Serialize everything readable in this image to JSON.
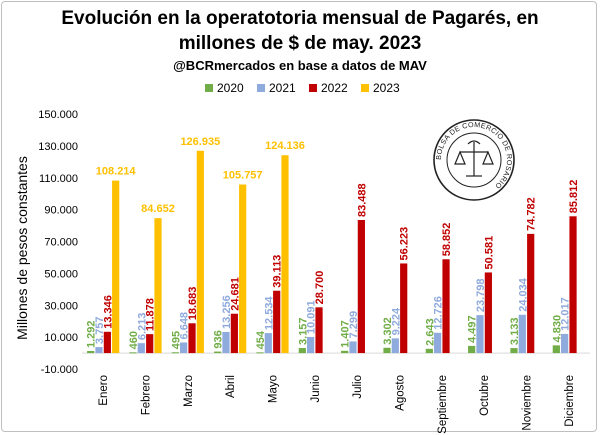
{
  "title_line1": "Evolución en la operatotoria mensual de Pagarés, en",
  "title_line2": "millones de $ de may. 2023",
  "subtitle": "@BCRmercados en base a datos de MAV",
  "seal_text": "BOLSA DE COMERCIO DE ROSARIO",
  "chart_data": {
    "type": "bar",
    "title": "Evolución en la operatotoria mensual de Pagarés, en millones de $ de may. 2023",
    "subtitle": "@BCRmercados en base a datos de MAV",
    "ylabel": "Millones de pesos constantes",
    "xlabel": "",
    "ylim": [
      -10000,
      150000
    ],
    "yticks": [
      -10000,
      10000,
      30000,
      50000,
      70000,
      90000,
      110000,
      130000,
      150000
    ],
    "ytick_labels": [
      "-10.000",
      "10.000",
      "30.000",
      "50.000",
      "70.000",
      "90.000",
      "110.000",
      "130.000",
      "150.000"
    ],
    "legend_position": "top",
    "grid": false,
    "categories": [
      "Enero",
      "Febrero",
      "Marzo",
      "Abril",
      "Mayo",
      "Junio",
      "Julio",
      "Agosto",
      "Septiembre",
      "Octubre",
      "Noviembre",
      "Diciembre"
    ],
    "series": [
      {
        "name": "2020",
        "color": "#70ad47",
        "values": [
          1292,
          460,
          495,
          936,
          454,
          3157,
          1407,
          3302,
          2643,
          4497,
          3133,
          4830
        ],
        "labels": [
          "1.292",
          "460",
          "495",
          "936",
          "454",
          "3.157",
          "1.407",
          "3.302",
          "2.643",
          "4.497",
          "3.133",
          "4.830"
        ]
      },
      {
        "name": "2021",
        "color": "#8faadc",
        "values": [
          3757,
          6213,
          6648,
          13256,
          12534,
          10091,
          7299,
          9224,
          12726,
          23798,
          24034,
          12017
        ],
        "labels": [
          "3.757",
          "6.213",
          "6.648",
          "13.256",
          "12.534",
          "10.091",
          "7.299",
          "9.224",
          "12.726",
          "23.798",
          "24.034",
          "12.017"
        ]
      },
      {
        "name": "2022",
        "color": "#c00000",
        "values": [
          13346,
          11878,
          18683,
          24681,
          39113,
          28700,
          83488,
          56223,
          58852,
          50581,
          74782,
          85812
        ],
        "labels": [
          "13.346",
          "11.878",
          "18.683",
          "24.681",
          "39.113",
          "28.700",
          "83.488",
          "56.223",
          "58.852",
          "50.581",
          "74.782",
          "85.812"
        ]
      },
      {
        "name": "2023",
        "color": "#ffc000",
        "values": [
          108214,
          84652,
          126935,
          105757,
          124136,
          null,
          null,
          null,
          null,
          null,
          null,
          null
        ],
        "labels": [
          "108.214",
          "84.652",
          "126.935",
          "105.757",
          "124.136",
          null,
          null,
          null,
          null,
          null,
          null,
          null
        ]
      }
    ]
  }
}
